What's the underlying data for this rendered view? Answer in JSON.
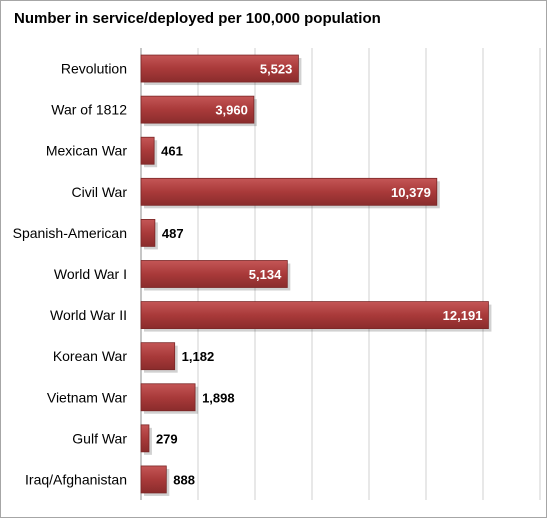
{
  "chart_data": {
    "type": "bar",
    "orientation": "horizontal",
    "title": "Number in service/deployed per 100,000 population",
    "categories": [
      "Revolution",
      "War of 1812",
      "Mexican War",
      "Civil War",
      "Spanish-American",
      "World War I",
      "World War II",
      "Korean War",
      "Vietnam War",
      "Gulf War",
      "Iraq/Afghanistan"
    ],
    "values": [
      5523,
      3960,
      461,
      10379,
      487,
      5134,
      12191,
      1182,
      1898,
      279,
      888
    ],
    "data_labels": [
      "5,523",
      "3,960",
      "461",
      "10,379",
      "487",
      "5,134",
      "12,191",
      "1,182",
      "1,898",
      "279",
      "888"
    ],
    "xlim": [
      0,
      14000
    ],
    "grid": true,
    "bar_color": "#a93a3a"
  }
}
